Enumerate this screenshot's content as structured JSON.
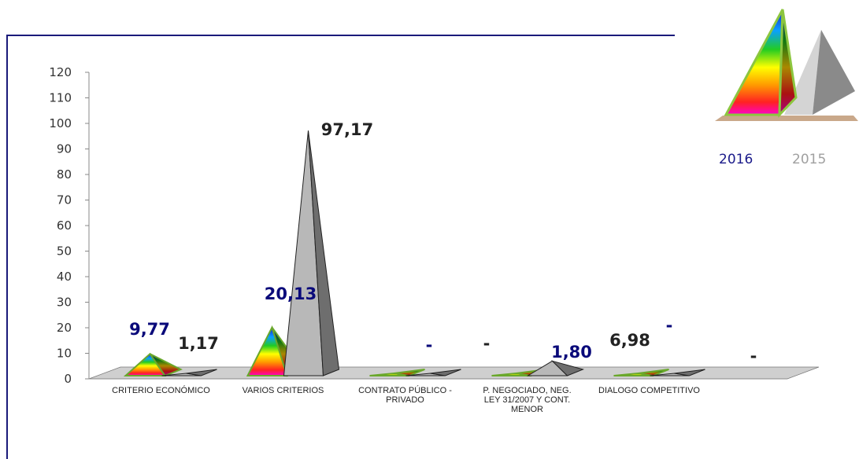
{
  "chart_data": {
    "type": "bar",
    "categories": [
      [
        "CRITERIO ECONÓMICO"
      ],
      [
        "VARIOS CRITERIOS"
      ],
      [
        "CONTRATO PÚBLICO -",
        "PRIVADO"
      ],
      [
        "P. NEGOCIADO, NEG.",
        "LEY 31/2007 Y CONT.",
        "MENOR"
      ],
      [
        "DIALOGO COMPETITIVO"
      ]
    ],
    "series": [
      {
        "name": "2016",
        "values": [
          9.77,
          20.13,
          0,
          1.8,
          0
        ],
        "labels": [
          "9,77",
          "20,13",
          "-",
          "1,80",
          "-"
        ],
        "color": "#0a0a7a"
      },
      {
        "name": "2015",
        "values": [
          1.17,
          97.17,
          0,
          6.98,
          0
        ],
        "labels": [
          "1,17",
          "97,17",
          "-",
          "6,98",
          "-"
        ],
        "color": "#222222"
      }
    ],
    "ylim": [
      0,
      120
    ],
    "yticks": [
      "0",
      "10",
      "20",
      "30",
      "40",
      "50",
      "60",
      "70",
      "80",
      "90",
      "100",
      "110",
      "120"
    ],
    "legend_position": "right",
    "legend_colors": {
      "2016": "#1a1a8a",
      "2015": "#a0a0a0"
    }
  }
}
